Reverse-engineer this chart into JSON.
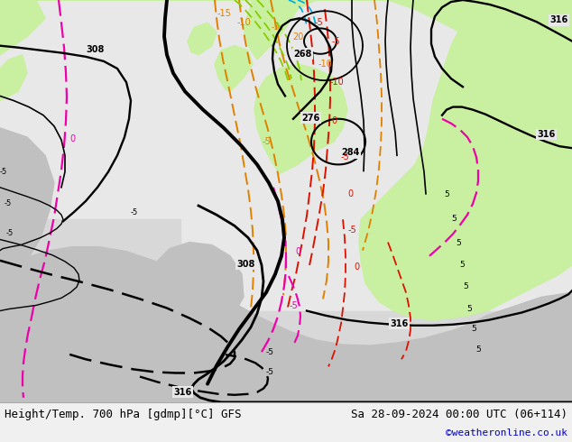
{
  "title_left": "Height/Temp. 700 hPa [gdmp][°C] GFS",
  "title_right": "Sa 28-09-2024 00:00 UTC (06+114)",
  "credit": "©weatheronline.co.uk",
  "bg_color": "#f0f0f0",
  "land_green": "#c8f0a0",
  "land_gray": "#c0c0c0",
  "sea_color": "#e8e8e8",
  "figsize": [
    6.34,
    4.9
  ],
  "dpi": 100,
  "bottom_bar_color": "#f0f0f0",
  "title_fontsize": 9,
  "credit_fontsize": 8,
  "credit_color": "#0000cc",
  "orange_color": "#e08000",
  "red_color": "#dd1100",
  "pink_color": "#ee00aa",
  "green_isotherm": "#88cc00",
  "cyan_color": "#00aadd",
  "black_contour_lw": 2.0,
  "thick_contour_lw": 2.8
}
